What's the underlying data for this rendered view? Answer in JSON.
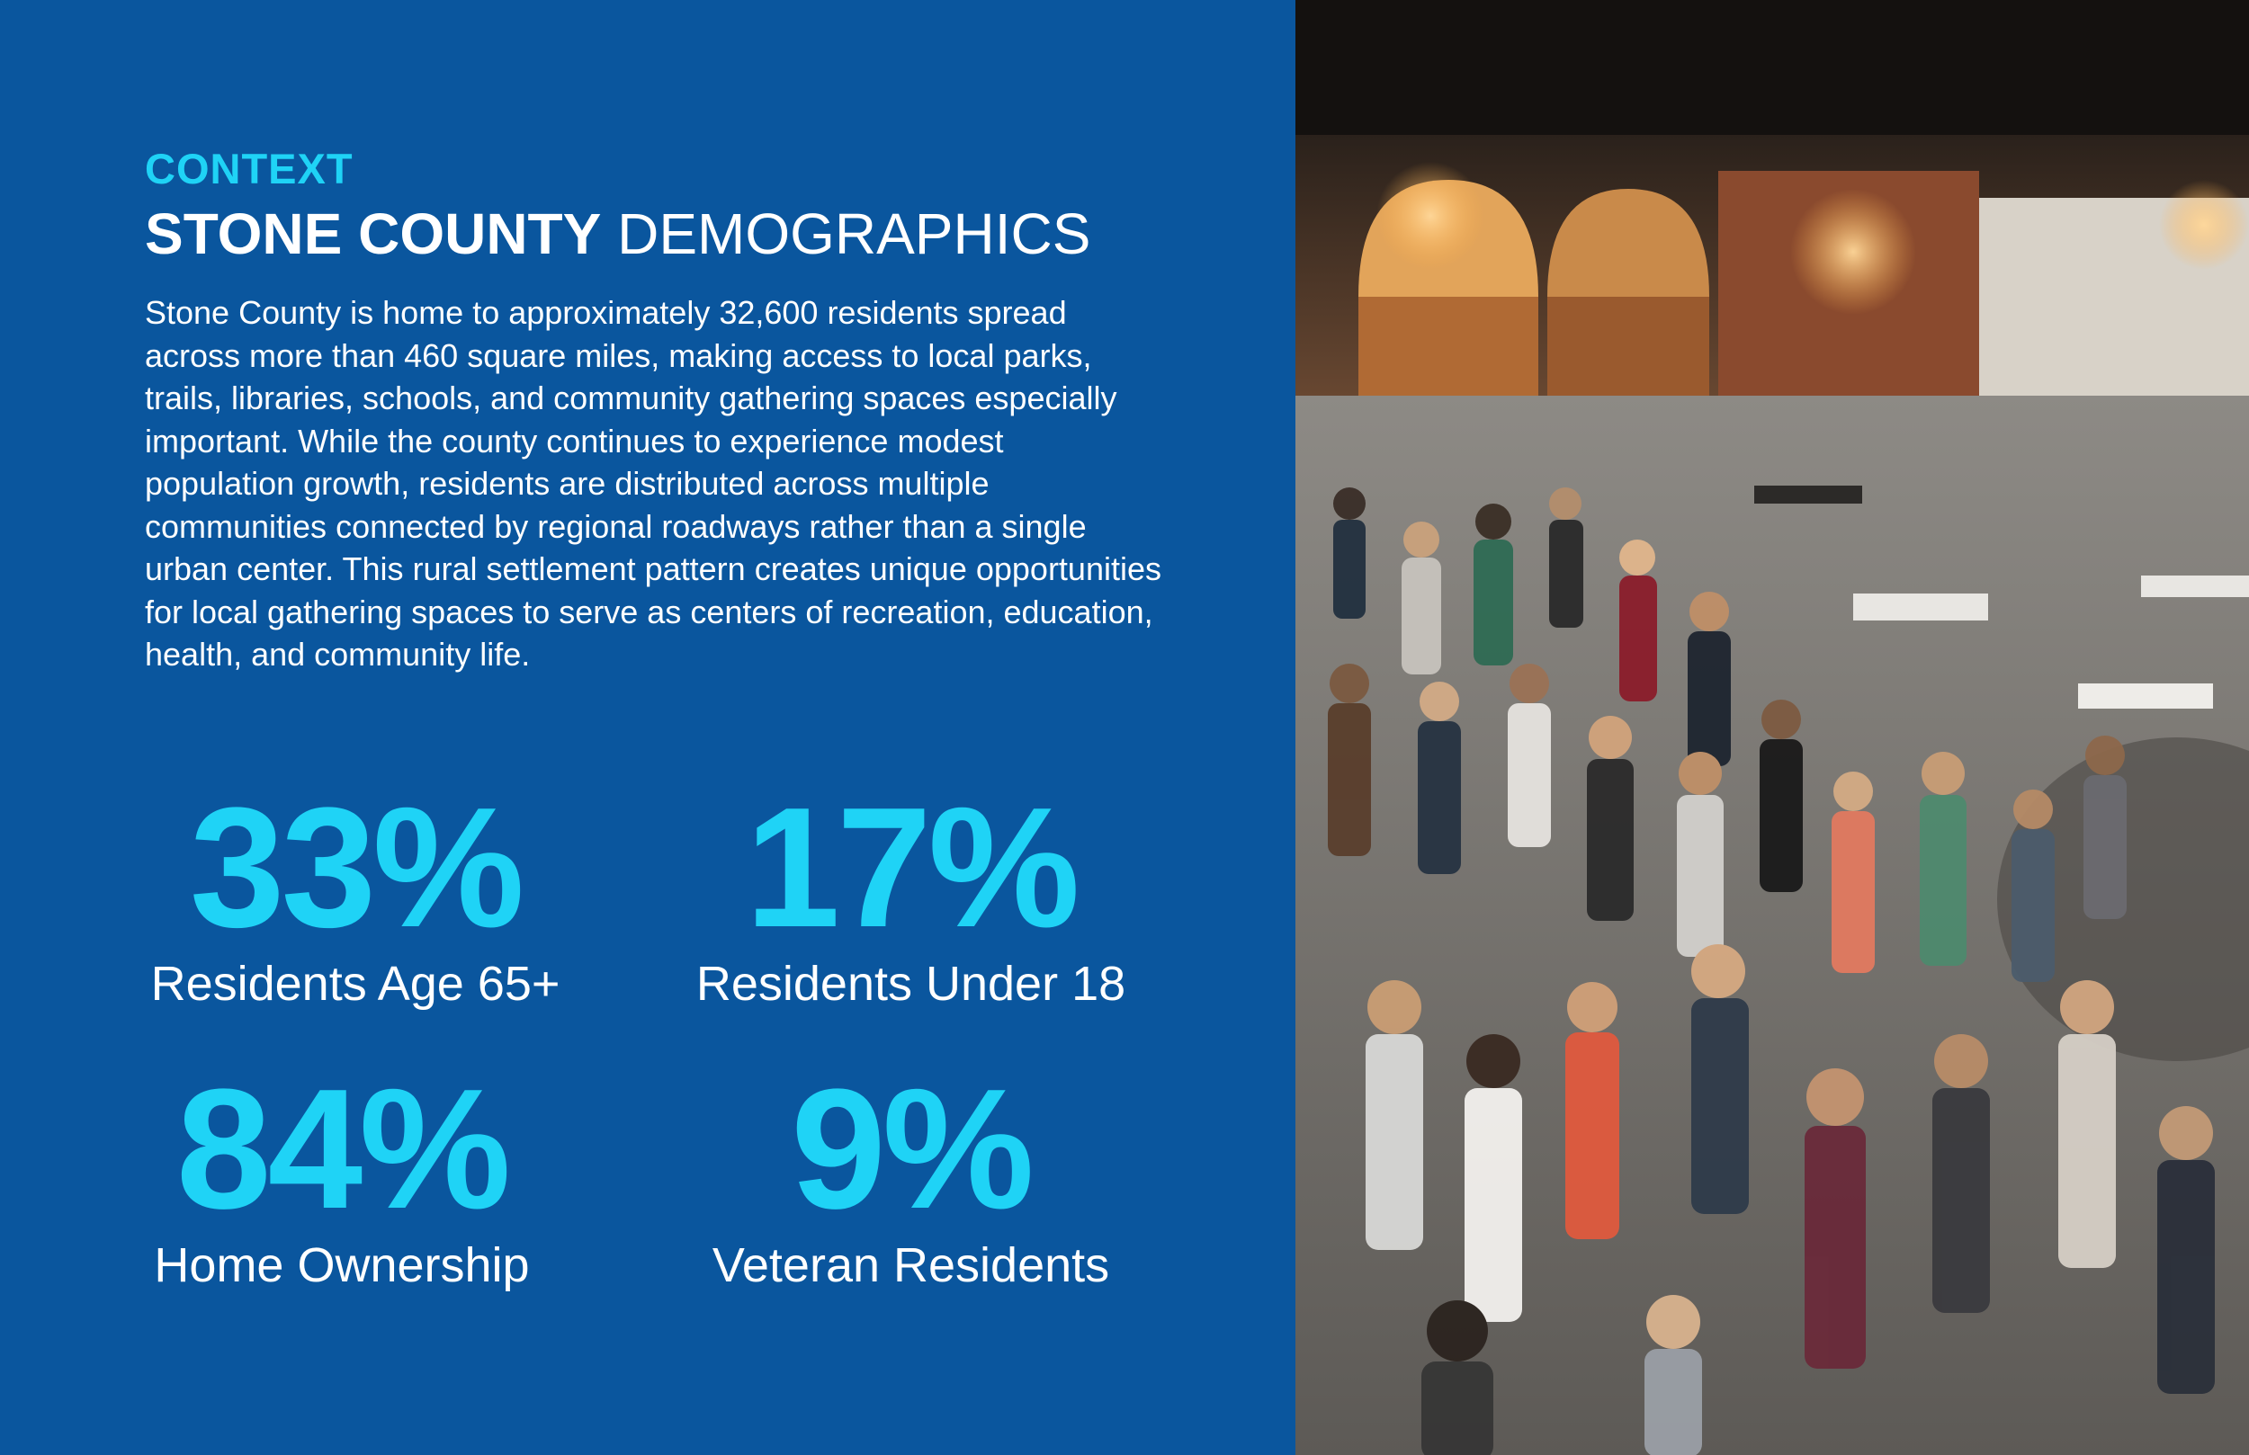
{
  "header": {
    "eyebrow": "CONTEXT",
    "title_bold": "STONE COUNTY",
    "title_light": "DEMOGRAPHICS"
  },
  "body_text": "Stone County is home to approximately 32,600 residents spread across more than 460 square miles, making access to local parks, trails, libraries, schools, and community gathering spaces especially important. While the county continues to experience modest population growth, residents are distributed across multiple communities connected by regional roadways rather than a single urban center. This rural settlement pattern creates unique opportunities for local gathering spaces to serve as centers of recreation, education, health, and community life.",
  "stats": [
    {
      "value": "33%",
      "label": "Residents Age 65+"
    },
    {
      "value": "17%",
      "label": "Residents Under 18"
    },
    {
      "value": "84%",
      "label": "Home Ownership"
    },
    {
      "value": "9%",
      "label": "Veteran Residents"
    }
  ],
  "colors": {
    "background": "#0a569e",
    "accent": "#1fd3f6",
    "text": "#ffffff"
  }
}
